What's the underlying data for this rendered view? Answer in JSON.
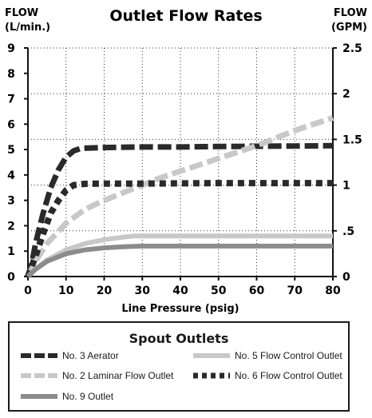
{
  "chart_data": {
    "type": "line",
    "title": "Outlet Flow Rates",
    "xlabel": "Line Pressure (psig)",
    "ylabel_left": [
      "FLOW",
      "(L/min.)"
    ],
    "ylabel_right": [
      "FLOW",
      "(GPM)"
    ],
    "xlim": [
      0,
      80
    ],
    "ylim": [
      0,
      9
    ],
    "ylim_right": [
      0,
      2.5
    ],
    "x_ticks": [
      "0",
      "10",
      "20",
      "30",
      "40",
      "50",
      "60",
      "70",
      "80"
    ],
    "y_ticks": [
      "0",
      "1",
      "2",
      "3",
      "4",
      "5",
      "6",
      "7",
      "8",
      "9"
    ],
    "y_ticks_right": [
      "0",
      ".5",
      "1",
      "1.5",
      "2",
      "2.5"
    ],
    "grid": true,
    "series": [
      {
        "name": "No. 3 Aerator",
        "color": "#2a2a2a",
        "style": "dash-long",
        "points": [
          [
            0,
            0
          ],
          [
            1,
            0.5
          ],
          [
            2,
            1.3
          ],
          [
            4,
            2.5
          ],
          [
            6,
            3.5
          ],
          [
            8,
            4.2
          ],
          [
            10,
            4.7
          ],
          [
            12,
            4.95
          ],
          [
            14,
            5.05
          ],
          [
            20,
            5.08
          ],
          [
            30,
            5.1
          ],
          [
            40,
            5.1
          ],
          [
            50,
            5.12
          ],
          [
            60,
            5.13
          ],
          [
            70,
            5.14
          ],
          [
            80,
            5.15
          ]
        ]
      },
      {
        "name": "No. 2 Laminar Flow Outlet",
        "color": "#c8c8c8",
        "style": "dash-long",
        "points": [
          [
            0,
            0
          ],
          [
            2,
            0.6
          ],
          [
            5,
            1.3
          ],
          [
            10,
            2.1
          ],
          [
            15,
            2.65
          ],
          [
            20,
            3.0
          ],
          [
            25,
            3.3
          ],
          [
            30,
            3.6
          ],
          [
            35,
            3.9
          ],
          [
            40,
            4.15
          ],
          [
            45,
            4.4
          ],
          [
            50,
            4.65
          ],
          [
            55,
            4.9
          ],
          [
            60,
            5.15
          ],
          [
            65,
            5.45
          ],
          [
            70,
            5.75
          ],
          [
            75,
            6.0
          ],
          [
            80,
            6.25
          ]
        ]
      },
      {
        "name": "No. 6 Flow Control Outlet",
        "color": "#2a2a2a",
        "style": "dots",
        "points": [
          [
            0,
            0
          ],
          [
            2,
            0.8
          ],
          [
            4,
            1.7
          ],
          [
            6,
            2.5
          ],
          [
            8,
            3.0
          ],
          [
            10,
            3.4
          ],
          [
            12,
            3.6
          ],
          [
            15,
            3.65
          ],
          [
            20,
            3.66
          ],
          [
            30,
            3.66
          ],
          [
            40,
            3.67
          ],
          [
            50,
            3.68
          ],
          [
            60,
            3.68
          ],
          [
            70,
            3.68
          ],
          [
            80,
            3.68
          ]
        ]
      },
      {
        "name": "No. 5 Flow Control Outlet",
        "color": "#c8c8c8",
        "style": "solid",
        "points": [
          [
            0,
            0
          ],
          [
            2,
            0.3
          ],
          [
            5,
            0.65
          ],
          [
            10,
            1.05
          ],
          [
            15,
            1.3
          ],
          [
            20,
            1.45
          ],
          [
            25,
            1.55
          ],
          [
            28,
            1.6
          ],
          [
            30,
            1.6
          ],
          [
            40,
            1.6
          ],
          [
            50,
            1.6
          ],
          [
            60,
            1.6
          ],
          [
            70,
            1.6
          ],
          [
            80,
            1.6
          ]
        ]
      },
      {
        "name": "No. 9 Outlet",
        "color": "#8c8c8c",
        "style": "solid",
        "points": [
          [
            0,
            0
          ],
          [
            2,
            0.28
          ],
          [
            5,
            0.6
          ],
          [
            10,
            0.9
          ],
          [
            15,
            1.05
          ],
          [
            20,
            1.13
          ],
          [
            25,
            1.17
          ],
          [
            30,
            1.2
          ],
          [
            40,
            1.2
          ],
          [
            50,
            1.2
          ],
          [
            60,
            1.2
          ],
          [
            70,
            1.2
          ],
          [
            80,
            1.2
          ]
        ]
      }
    ]
  },
  "legend": {
    "title": "Spout Outlets",
    "items": [
      {
        "label": "No. 3 Aerator",
        "color": "#2a2a2a",
        "style": "dash-long"
      },
      {
        "label": "No. 5 Flow Control Outlet",
        "color": "#c8c8c8",
        "style": "solid"
      },
      {
        "label": "No. 2 Laminar Flow Outlet",
        "color": "#c8c8c8",
        "style": "dash-long"
      },
      {
        "label": "No. 6 Flow Control Outlet",
        "color": "#2a2a2a",
        "style": "dots"
      },
      {
        "label": "No. 9 Outlet",
        "color": "#8c8c8c",
        "style": "solid"
      }
    ]
  }
}
